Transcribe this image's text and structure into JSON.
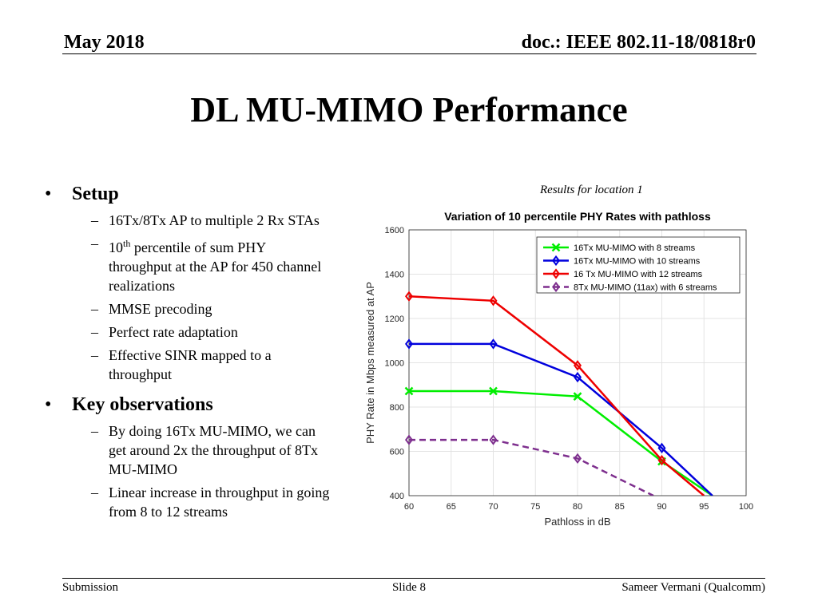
{
  "header": {
    "date": "May 2018",
    "doc": "doc.: IEEE 802.11-18/0818r0"
  },
  "slide_title": "DL MU-MIMO Performance",
  "bullets": {
    "setup": {
      "heading": "Setup",
      "items": [
        "16Tx/8Tx AP to multiple 2 Rx STAs",
        "percentile of sum PHY throughput at the AP for 450 channel realizations",
        "MMSE precoding",
        "Perfect rate adaptation",
        "Effective SINR mapped to a throughput"
      ],
      "item2_prefix": "10",
      "item2_sup": "th"
    },
    "observations": {
      "heading": "Key observations",
      "items": [
        "By doing 16Tx MU-MIMO, we can get around 2x the throughput of 8Tx MU-MIMO",
        "Linear increase in throughput in going from 8 to 12 streams"
      ]
    }
  },
  "caption": "Results for location 1",
  "chart_data": {
    "type": "line",
    "title": "Variation of 10 percentile PHY Rates with pathloss",
    "xlabel": "Pathloss in dB",
    "ylabel": "PHY Rate in Mbps measured at AP",
    "xlim": [
      60,
      100
    ],
    "ylim": [
      400,
      1600
    ],
    "xticks": [
      60,
      65,
      70,
      75,
      80,
      85,
      90,
      95,
      100
    ],
    "yticks": [
      400,
      600,
      800,
      1000,
      1200,
      1400,
      1600
    ],
    "grid": true,
    "legend_position": "top-right",
    "series": [
      {
        "name": "16Tx MU-MIMO with 8 streams",
        "color": "#00ee00",
        "marker": "x",
        "dash": false,
        "x": [
          60,
          70,
          80,
          90,
          96
        ],
        "y": [
          872,
          872,
          848,
          555,
          400
        ]
      },
      {
        "name": "16Tx MU-MIMO with 10 streams",
        "color": "#0000dd",
        "marker": "diamond",
        "dash": false,
        "x": [
          60,
          70,
          80,
          90,
          96
        ],
        "y": [
          1085,
          1085,
          935,
          615,
          400
        ]
      },
      {
        "name": "16 Tx MU-MIMO with 12 streams",
        "color": "#ee0000",
        "marker": "diamond",
        "dash": false,
        "x": [
          60,
          70,
          80,
          90,
          95
        ],
        "y": [
          1300,
          1280,
          988,
          560,
          400
        ]
      },
      {
        "name": "8Tx MU-MIMO (11ax) with 6 streams",
        "color": "#7e2f8e",
        "marker": "diamond",
        "dash": true,
        "x": [
          60,
          70,
          80,
          89
        ],
        "y": [
          652,
          652,
          568,
          400
        ]
      }
    ]
  },
  "footer": {
    "left": "Submission",
    "center": "Slide 8",
    "right": "Sameer Vermani (Qualcomm)"
  }
}
